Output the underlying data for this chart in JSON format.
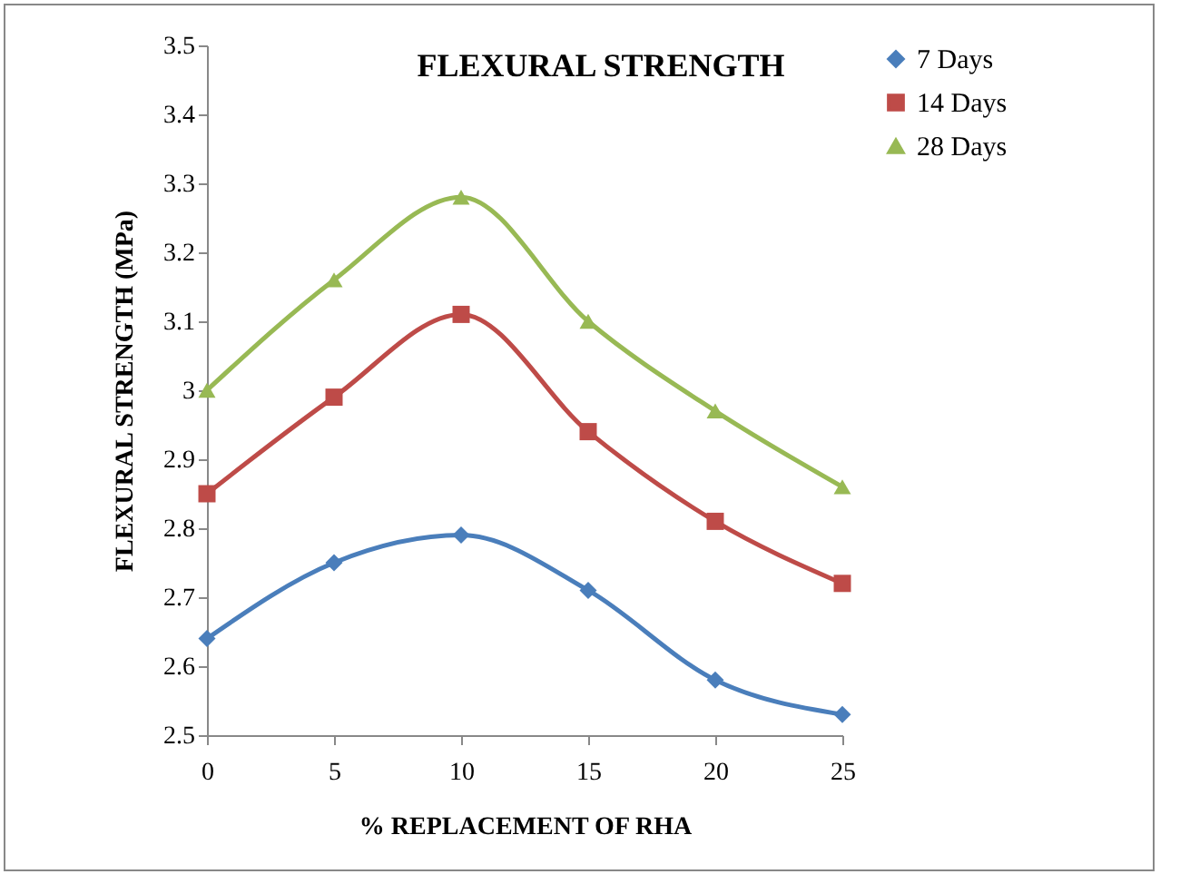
{
  "chart_data": {
    "type": "line",
    "title": "FLEXURAL STRENGTH",
    "xlabel": "% REPLACEMENT OF RHA",
    "ylabel": "FLEXURAL STRENGTH (MPa)",
    "x": [
      0,
      5,
      10,
      15,
      20,
      25
    ],
    "series": [
      {
        "name": "7 Days",
        "color": "#4a7ebb",
        "marker": "diamond",
        "values": [
          2.64,
          2.75,
          2.79,
          2.71,
          2.58,
          2.53
        ]
      },
      {
        "name": "14 Days",
        "color": "#be4b48",
        "marker": "square",
        "values": [
          2.85,
          2.99,
          3.11,
          2.94,
          2.81,
          2.72
        ]
      },
      {
        "name": "28 Days",
        "color": "#98b954",
        "marker": "triangle",
        "values": [
          3.0,
          3.16,
          3.28,
          3.1,
          2.97,
          2.86
        ]
      }
    ],
    "xlim": [
      0,
      25
    ],
    "xticks": [
      0,
      5,
      10,
      15,
      20,
      25
    ],
    "ylim": [
      2.5,
      3.5
    ],
    "yticks": [
      2.5,
      2.6,
      2.7,
      2.8,
      2.9,
      3,
      3.1,
      3.2,
      3.3,
      3.4,
      3.5
    ],
    "grid": false,
    "legend": "right",
    "line_style": "solid"
  }
}
